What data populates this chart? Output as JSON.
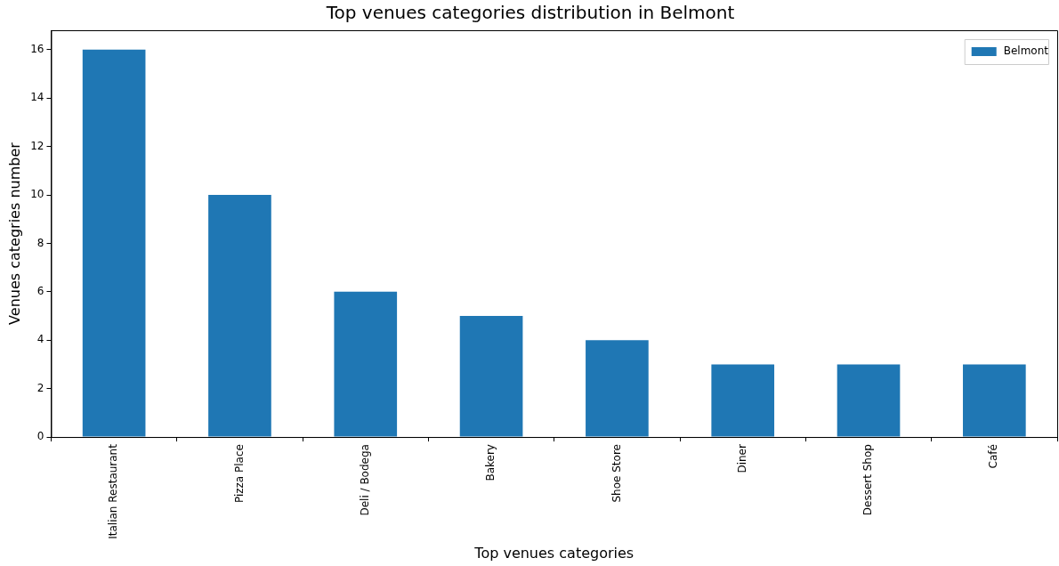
{
  "chart_data": {
    "type": "bar",
    "title": "Top venues categories distribution in Belmont",
    "xlabel": "Top venues categories",
    "ylabel": "Venues categries number",
    "categories": [
      "Italian Restaurant",
      "Pizza Place",
      "Deli / Bodega",
      "Bakery",
      "Shoe Store",
      "Diner",
      "Dessert Shop",
      "Café"
    ],
    "series": [
      {
        "name": "Belmont",
        "color": "#1f77b4",
        "values": [
          16,
          10,
          6,
          5,
          4,
          3,
          3,
          3
        ]
      }
    ],
    "ylim": [
      0,
      16.8
    ],
    "yticks": [
      0,
      2,
      4,
      6,
      8,
      10,
      12,
      14,
      16
    ],
    "grid": false,
    "legend": "top right"
  }
}
